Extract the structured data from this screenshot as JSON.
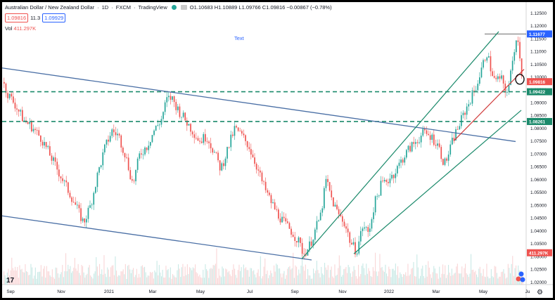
{
  "header": {
    "symbol_name": "Australian Dollar / New Zealand Dollar",
    "interval": "1D",
    "exchange": "FXCM",
    "source": "TradingView",
    "ohlc": "O1.10683 H1.10889 L1.09766 C1.09816 −0.00867 (−0.78%)",
    "sell_price": "1.09816",
    "spread": "11.3",
    "buy_price": "1.09929",
    "volume_label": "Vol",
    "volume_value": "411.297K",
    "text_annotation": "Text"
  },
  "price_axis": {
    "ticks": [
      "1.12500",
      "1.12000",
      "1.11500",
      "1.11000",
      "1.10500",
      "1.10000",
      "1.09500",
      "1.09000",
      "1.08500",
      "1.08000",
      "1.07500",
      "1.07000",
      "1.06500",
      "1.06000",
      "1.05500",
      "1.05000",
      "1.04500",
      "1.04000",
      "1.03500",
      "1.03000",
      "1.02500",
      "1.02000"
    ],
    "tick_values": [
      1.125,
      1.12,
      1.115,
      1.11,
      1.105,
      1.1,
      1.095,
      1.09,
      1.085,
      1.08,
      1.075,
      1.07,
      1.065,
      1.06,
      1.055,
      1.05,
      1.045,
      1.04,
      1.035,
      1.03,
      1.025,
      1.02
    ],
    "labels": [
      {
        "text": "1.11677",
        "value": 1.11677,
        "color": "#2962ff"
      },
      {
        "text": "1.09816",
        "value": 1.09816,
        "color": "#ef5350"
      },
      {
        "text": "1.09422",
        "value": 1.09422,
        "color": "#1b8a6b"
      },
      {
        "text": "1.08261",
        "value": 1.08261,
        "color": "#1b8a6b"
      },
      {
        "text": "411.297K",
        "value": 1.0314,
        "color": "#ef5350"
      }
    ]
  },
  "time_axis": {
    "labels": [
      "Sep",
      "Nov",
      "2021",
      "Mar",
      "May",
      "Jul",
      "Sep",
      "Nov",
      "2022",
      "Mar",
      "May",
      "Ju"
    ]
  },
  "chart_data": {
    "type": "candlestick",
    "y_range": [
      1.019,
      1.127
    ],
    "horizontal_levels": [
      {
        "value": 1.09422,
        "style": "dashed",
        "color": "#1b8a6b"
      },
      {
        "value": 1.08261,
        "style": "dashed",
        "color": "#1b8a6b"
      },
      {
        "value": 1.11677,
        "style": "solid",
        "color": "#555555"
      }
    ],
    "price_path": [
      [
        0,
        1.098
      ],
      [
        8,
        1.093
      ],
      [
        16,
        1.09
      ],
      [
        30,
        1.083
      ],
      [
        40,
        1.081
      ],
      [
        55,
        1.076
      ],
      [
        70,
        1.068
      ],
      [
        85,
        1.06
      ],
      [
        100,
        1.052
      ],
      [
        115,
        1.043
      ],
      [
        125,
        1.05
      ],
      [
        135,
        1.062
      ],
      [
        145,
        1.072
      ],
      [
        155,
        1.079
      ],
      [
        165,
        1.077
      ],
      [
        175,
        1.069
      ],
      [
        185,
        1.058
      ],
      [
        195,
        1.07
      ],
      [
        205,
        1.073
      ],
      [
        215,
        1.079
      ],
      [
        225,
        1.083
      ],
      [
        233,
        1.091
      ],
      [
        240,
        1.092
      ],
      [
        250,
        1.087
      ],
      [
        260,
        1.083
      ],
      [
        270,
        1.079
      ],
      [
        280,
        1.075
      ],
      [
        290,
        1.077
      ],
      [
        300,
        1.071
      ],
      [
        310,
        1.064
      ],
      [
        320,
        1.072
      ],
      [
        330,
        1.08
      ],
      [
        340,
        1.077
      ],
      [
        350,
        1.073
      ],
      [
        360,
        1.066
      ],
      [
        370,
        1.058
      ],
      [
        380,
        1.052
      ],
      [
        390,
        1.047
      ],
      [
        400,
        1.043
      ],
      [
        410,
        1.04
      ],
      [
        420,
        1.036
      ],
      [
        428,
        1.031
      ],
      [
        436,
        1.034
      ],
      [
        444,
        1.04
      ],
      [
        452,
        1.046
      ],
      [
        460,
        1.06
      ],
      [
        468,
        1.052
      ],
      [
        476,
        1.047
      ],
      [
        486,
        1.043
      ],
      [
        495,
        1.035
      ],
      [
        503,
        1.032
      ],
      [
        512,
        1.042
      ],
      [
        520,
        1.039
      ],
      [
        528,
        1.05
      ],
      [
        538,
        1.058
      ],
      [
        548,
        1.06
      ],
      [
        558,
        1.063
      ],
      [
        568,
        1.068
      ],
      [
        578,
        1.072
      ],
      [
        588,
        1.075
      ],
      [
        598,
        1.078
      ],
      [
        608,
        1.077
      ],
      [
        618,
        1.074
      ],
      [
        628,
        1.066
      ],
      [
        634,
        1.07
      ],
      [
        642,
        1.077
      ],
      [
        650,
        1.082
      ],
      [
        658,
        1.087
      ],
      [
        666,
        1.092
      ],
      [
        674,
        1.097
      ],
      [
        682,
        1.104
      ],
      [
        688,
        1.11
      ],
      [
        694,
        1.103
      ],
      [
        700,
        1.098
      ],
      [
        708,
        1.1
      ],
      [
        714,
        1.094
      ],
      [
        720,
        1.097
      ],
      [
        726,
        1.108
      ],
      [
        730,
        1.116
      ],
      [
        734,
        1.112
      ],
      [
        739,
        1.098
      ]
    ]
  }
}
